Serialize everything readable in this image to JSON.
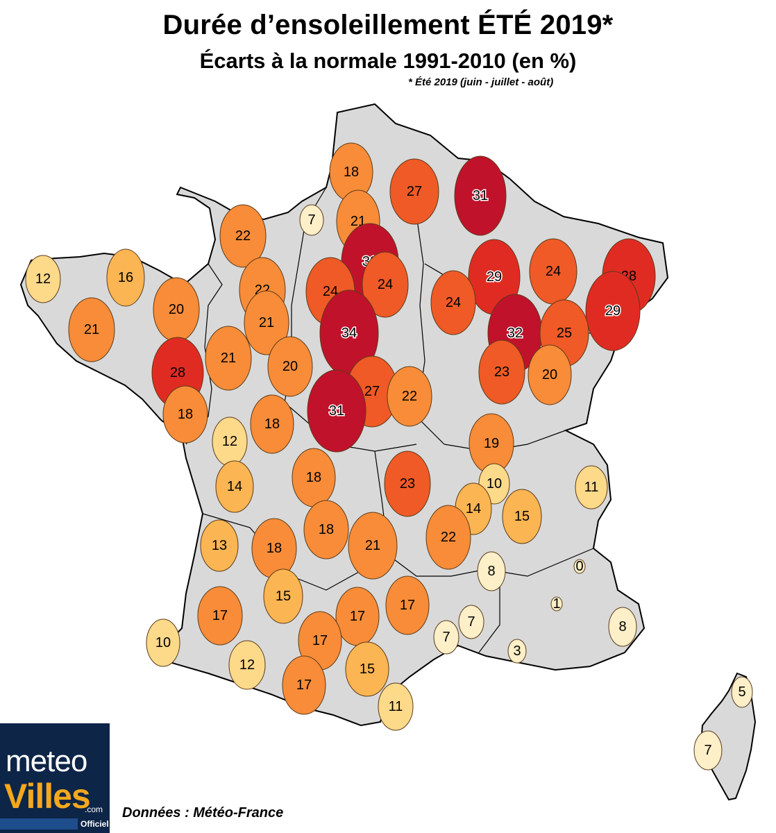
{
  "title": "Durée d’ensoleillement ÉTÉ 2019*",
  "subtitle": "Écarts à la normale 1991-2010 (en %)",
  "note": "* Été 2019 (juin - juillet - août)",
  "source": "Données : Météo-France",
  "logo": {
    "word1": "meteo",
    "word2": "Villes",
    "suffix": ".com",
    "tag": "Officiel"
  },
  "colors": {
    "land": "#d9d9d9",
    "border": "#000000",
    "scale": [
      "#fdefc8",
      "#fdd98a",
      "#fbb552",
      "#f88c38",
      "#ef5a26",
      "#e02b22",
      "#c1122b"
    ]
  },
  "stations": [
    {
      "v": 18
    },
    {
      "v": 27
    },
    {
      "v": 31
    },
    {
      "v": 7
    },
    {
      "v": 21
    },
    {
      "v": 22
    },
    {
      "v": 33
    },
    {
      "v": 12
    },
    {
      "v": 16
    },
    {
      "v": 29
    },
    {
      "v": 24
    },
    {
      "v": 28
    },
    {
      "v": 22
    },
    {
      "v": 24
    },
    {
      "v": 24
    },
    {
      "v": 20
    },
    {
      "v": 24
    },
    {
      "v": 21
    },
    {
      "v": 29
    },
    {
      "v": 21
    },
    {
      "v": 34
    },
    {
      "v": 32
    },
    {
      "v": 25
    },
    {
      "v": 28
    },
    {
      "v": 21
    },
    {
      "v": 20
    },
    {
      "v": 23
    },
    {
      "v": 20
    },
    {
      "v": 27
    },
    {
      "v": 22
    },
    {
      "v": 18
    },
    {
      "v": 31
    },
    {
      "v": 12
    },
    {
      "v": 18
    },
    {
      "v": 19
    },
    {
      "v": 14
    },
    {
      "v": 18
    },
    {
      "v": 23
    },
    {
      "v": 10
    },
    {
      "v": 11
    },
    {
      "v": 14
    },
    {
      "v": 15
    },
    {
      "v": 13
    },
    {
      "v": 18
    },
    {
      "v": 18
    },
    {
      "v": 21
    },
    {
      "v": 22
    },
    {
      "v": 8
    },
    {
      "v": 0
    },
    {
      "v": 15
    },
    {
      "v": 1
    },
    {
      "v": 17
    },
    {
      "v": 17
    },
    {
      "v": 17
    },
    {
      "v": 7
    },
    {
      "v": 17
    },
    {
      "v": 7
    },
    {
      "v": 8
    },
    {
      "v": 10
    },
    {
      "v": 3
    },
    {
      "v": 12
    },
    {
      "v": 15
    },
    {
      "v": 17
    },
    {
      "v": 11
    },
    {
      "v": 5
    },
    {
      "v": 7
    }
  ]
}
